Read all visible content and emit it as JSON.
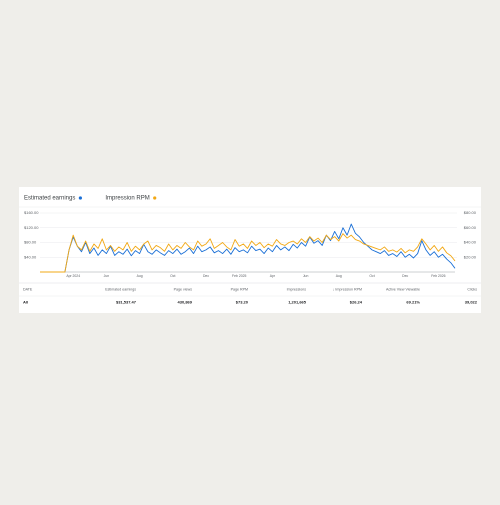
{
  "chart_data": {
    "type": "line",
    "categories": [
      null,
      null,
      null,
      null,
      null,
      null,
      null,
      null,
      "Apr 2024",
      null,
      null,
      null,
      null,
      null,
      null,
      null,
      "Jun",
      null,
      null,
      null,
      null,
      null,
      null,
      null,
      "Aug",
      null,
      null,
      null,
      null,
      null,
      null,
      null,
      "Oct",
      null,
      null,
      null,
      null,
      null,
      null,
      null,
      "Dec",
      null,
      null,
      null,
      null,
      null,
      null,
      null,
      "Feb 2025",
      null,
      null,
      null,
      null,
      null,
      null,
      null,
      "Apr",
      null,
      null,
      null,
      null,
      null,
      null,
      null,
      "Jun",
      null,
      null,
      null,
      null,
      null,
      null,
      null,
      "Aug",
      null,
      null,
      null,
      null,
      null,
      null,
      null,
      "Oct",
      null,
      null,
      null,
      null,
      null,
      null,
      null,
      "Dec",
      null,
      null,
      null,
      null,
      null,
      null,
      null,
      "Feb 2026",
      null,
      null,
      null,
      null
    ],
    "series": [
      {
        "name": "Estimated earnings",
        "color": "#1a6fd6",
        "values": [
          0,
          0,
          0,
          0,
          0,
          0,
          0,
          60,
          95,
          70,
          55,
          80,
          50,
          65,
          45,
          60,
          50,
          70,
          45,
          55,
          48,
          62,
          44,
          58,
          50,
          75,
          55,
          48,
          60,
          52,
          45,
          58,
          50,
          62,
          48,
          55,
          65,
          50,
          70,
          55,
          60,
          68,
          52,
          58,
          50,
          62,
          48,
          66,
          55,
          60,
          52,
          70,
          58,
          62,
          50,
          65,
          55,
          72,
          60,
          68,
          58,
          75,
          65,
          80,
          70,
          95,
          78,
          85,
          72,
          100,
          85,
          110,
          90,
          120,
          100,
          130,
          105,
          95,
          80,
          70,
          60,
          55,
          50,
          58,
          45,
          50,
          42,
          55,
          40,
          48,
          38,
          50,
          85,
          60,
          45,
          55,
          40,
          48,
          35,
          25,
          10
        ]
      },
      {
        "name": "Impression RPM",
        "color": "#f2a814",
        "axis": "y2",
        "values": [
          0,
          0,
          0,
          0,
          0,
          0,
          0,
          30,
          50,
          35,
          30,
          42,
          28,
          38,
          32,
          45,
          30,
          36,
          28,
          34,
          30,
          40,
          28,
          35,
          30,
          38,
          42,
          30,
          36,
          33,
          28,
          38,
          30,
          36,
          32,
          40,
          34,
          30,
          42,
          35,
          38,
          45,
          32,
          36,
          40,
          34,
          30,
          44,
          35,
          38,
          32,
          42,
          36,
          40,
          33,
          38,
          35,
          44,
          38,
          36,
          40,
          42,
          38,
          45,
          40,
          48,
          42,
          46,
          40,
          50,
          44,
          48,
          42,
          52,
          46,
          50,
          44,
          42,
          38,
          36,
          34,
          32,
          30,
          34,
          28,
          30,
          27,
          32,
          26,
          30,
          28,
          34,
          45,
          38,
          30,
          36,
          28,
          34,
          26,
          22,
          15
        ]
      }
    ],
    "ylim": [
      0,
      160
    ],
    "yticks": [
      {
        "value": 40,
        "label": "$40.00"
      },
      {
        "value": 80,
        "label": "$80.00"
      },
      {
        "value": 120,
        "label": "$120.00"
      },
      {
        "value": 160,
        "label": "$160.00"
      }
    ],
    "y2lim": [
      0,
      80
    ],
    "y2ticks": [
      {
        "value": 20,
        "label": "$20.00"
      },
      {
        "value": 40,
        "label": "$40.00"
      },
      {
        "value": 60,
        "label": "$60.00"
      },
      {
        "value": 80,
        "label": "$80.00"
      }
    ],
    "grid": true
  },
  "table": {
    "header": [
      "DATE",
      "Estimated earnings",
      "Page views",
      "Page RPM",
      "Impressions",
      "↓ Impression RPM",
      "Active View Viewable",
      "Clicks"
    ],
    "rows": [
      [
        "All",
        "$31,537.47",
        "430,869",
        "$73.20",
        "1,201,665",
        "$26.24",
        "69.21%",
        "39,022"
      ]
    ]
  }
}
